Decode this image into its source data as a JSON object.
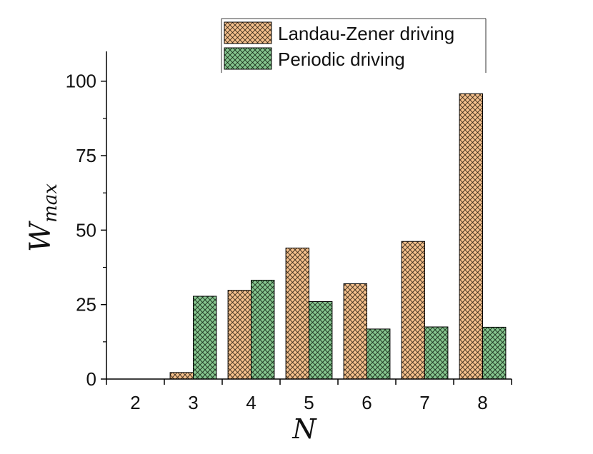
{
  "chart_data": {
    "type": "bar",
    "categories": [
      "2",
      "3",
      "4",
      "5",
      "6",
      "7",
      "8"
    ],
    "series": [
      {
        "name": "Landau-Zener driving",
        "values": [
          0,
          2.2,
          29.8,
          44,
          32,
          46.2,
          95.8
        ]
      },
      {
        "name": "Periodic driving",
        "values": [
          0,
          27.8,
          33.2,
          26,
          16.8,
          17.5,
          17.4
        ]
      }
    ],
    "xlabel": "N",
    "ylabel_main": "W",
    "ylabel_sub": "max",
    "ylim": [
      0,
      110
    ],
    "yticks": [
      0,
      25,
      50,
      75,
      100
    ],
    "grid": false,
    "legend_position": "top-right",
    "colors": {
      "series_0": "#f5c18d",
      "series_1": "#86c68f",
      "hatch": "#2b2b2b",
      "axis": "#000000"
    }
  }
}
